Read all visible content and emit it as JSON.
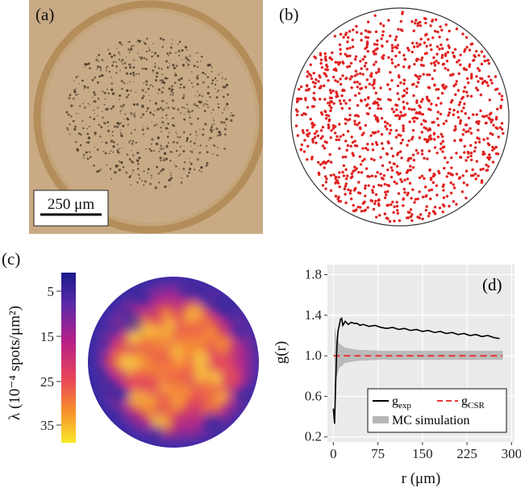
{
  "panels": {
    "a": {
      "label": "(a)",
      "scalebar_text": "250 μm"
    },
    "b": {
      "label": "(b)"
    },
    "c": {
      "label": "(c)",
      "colorbar_ticks": [
        "5",
        "15",
        "25",
        "35"
      ],
      "colorbar_unit": "λ (10⁻⁴ spots/μm²)"
    },
    "d": {
      "label": "(d)"
    }
  },
  "colors": {
    "petri_bg": "#c9aa84",
    "ring": "#b58f5c",
    "spot_red": "#e02020",
    "g_exp": "#000000",
    "g_csr": "#e53935",
    "mc_band": "#b5b5b5",
    "panel_bg": "#ebebeb"
  },
  "chart_data": {
    "type": "line",
    "title": "",
    "xlabel": "r (μm)",
    "ylabel": "g(r)",
    "xlim": [
      -10,
      305
    ],
    "ylim": [
      0.15,
      1.9
    ],
    "xticks": [
      0,
      75,
      150,
      225,
      300
    ],
    "yticks": [
      0.2,
      0.6,
      1.0,
      1.4,
      1.8
    ],
    "grid": true,
    "legend_position": "bottom-right",
    "series": [
      {
        "name": "g_exp",
        "label_main": "g",
        "label_sub": "exp",
        "style": "solid",
        "x": [
          0,
          2,
          4,
          6,
          8,
          10,
          12,
          14,
          16,
          20,
          25,
          30,
          35,
          40,
          45,
          50,
          60,
          70,
          80,
          90,
          100,
          110,
          120,
          130,
          140,
          150,
          160,
          170,
          180,
          190,
          200,
          210,
          220,
          230,
          240,
          250,
          260,
          270,
          280
        ],
        "y": [
          0.48,
          0.33,
          0.75,
          1.1,
          1.25,
          1.3,
          1.36,
          1.37,
          1.3,
          1.34,
          1.31,
          1.33,
          1.32,
          1.32,
          1.3,
          1.31,
          1.29,
          1.3,
          1.28,
          1.27,
          1.28,
          1.26,
          1.27,
          1.25,
          1.26,
          1.24,
          1.25,
          1.23,
          1.24,
          1.22,
          1.23,
          1.21,
          1.22,
          1.2,
          1.21,
          1.19,
          1.2,
          1.18,
          1.17
        ]
      },
      {
        "name": "g_CSR",
        "label_main": "g",
        "label_sub": "CSR",
        "style": "dashed",
        "x": [
          0,
          285
        ],
        "y": [
          1.0,
          1.0
        ]
      },
      {
        "name": "MC simulation",
        "label_main": "MC simulation",
        "label_sub": "",
        "style": "band",
        "x": [
          2,
          5,
          10,
          20,
          40,
          80,
          150,
          285
        ],
        "upper": [
          1.3,
          1.2,
          1.12,
          1.08,
          1.06,
          1.05,
          1.05,
          1.05
        ],
        "lower": [
          0.55,
          0.78,
          0.88,
          0.93,
          0.95,
          0.96,
          0.96,
          0.96
        ]
      }
    ]
  }
}
